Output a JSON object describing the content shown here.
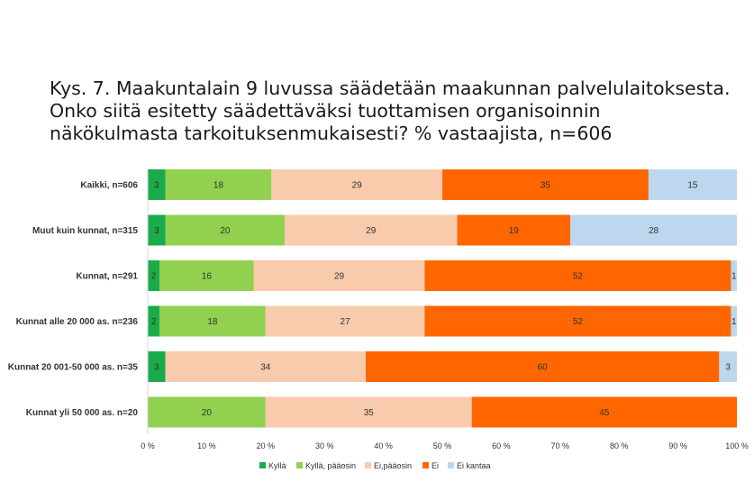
{
  "title_lines": [
    "Kys. 7. Maakuntalain 9 luvussa säädetään maakunnan palvelulaitoksesta.",
    "Onko siitä esitetty säädettäväksi tuottamisen organisoinnin",
    "näkökulmasta tarkoituksenmukaisesti? % vastaajista, n=606"
  ],
  "chart_data": {
    "type": "bar",
    "orientation": "horizontal",
    "stacked": "percent",
    "categories": [
      "Kaikki, n=606",
      "Muut kuin kunnat, n=315",
      "Kunnat, n=291",
      "Kunnat alle 20 000 as. n=236",
      "Kunnat 20 001-50 000 as. n=35",
      "Kunnat yli 50 000 as. n=20"
    ],
    "series": [
      {
        "name": "Kyllä",
        "color": "#1aab4b",
        "values": [
          3,
          3,
          2,
          2,
          3,
          0
        ]
      },
      {
        "name": "Kyllä, pääosin",
        "color": "#92d050",
        "values": [
          18,
          20,
          16,
          18,
          0,
          20
        ]
      },
      {
        "name": "Ei,pääosin",
        "color": "#f8cbad",
        "values": [
          29,
          29,
          29,
          27,
          34,
          35
        ]
      },
      {
        "name": "Ei",
        "color": "#ff6600",
        "values": [
          35,
          19,
          52,
          52,
          60,
          45
        ]
      },
      {
        "name": "Ei kantaa",
        "color": "#bdd7ee",
        "values": [
          15,
          28,
          1,
          1,
          3,
          0
        ]
      }
    ],
    "xlim": [
      0,
      100
    ],
    "xticks": [
      "0 %",
      "10 %",
      "20 %",
      "30 %",
      "40 %",
      "50 %",
      "60 %",
      "70 %",
      "80 %",
      "90 %",
      "100 %"
    ],
    "legend_position": "bottom",
    "grid": false
  }
}
